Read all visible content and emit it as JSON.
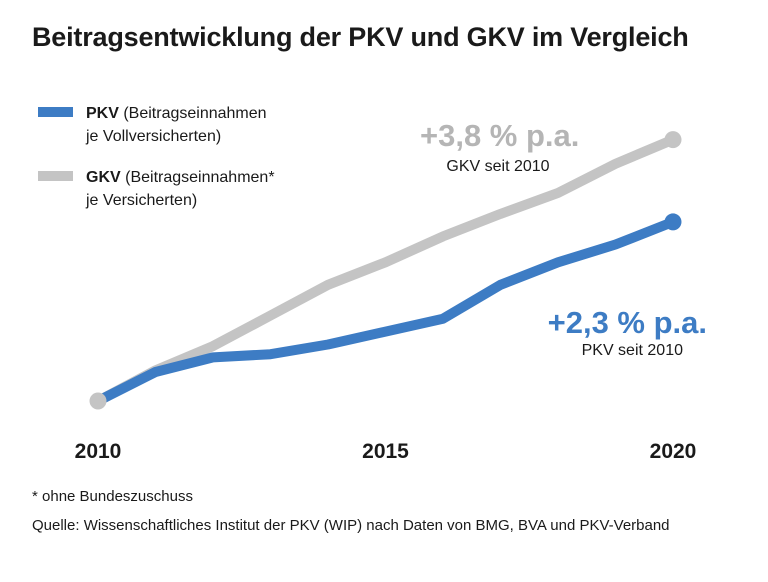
{
  "title": "Beitragsentwicklung der PKV und GKV im Vergleich",
  "chart_data": {
    "type": "line",
    "title": "Beitragsentwicklung der PKV und GKV im Vergleich",
    "xlabel": "",
    "ylabel": "",
    "x_ticks": [
      "2010",
      "2015",
      "2020"
    ],
    "xlim": [
      2010,
      2020
    ],
    "ylim": [
      0,
      15
    ],
    "grid": false,
    "legend_position": "top-left",
    "series": [
      {
        "id": "gkv",
        "name_bold": "GKV",
        "name_rest": "(Beitragseinnahmen*",
        "name_line2": "je Versicherten)",
        "color": "#c4c4c4",
        "x": [
          2010,
          2011,
          2012,
          2013,
          2014,
          2015,
          2016,
          2017,
          2018,
          2019,
          2020
        ],
        "y": [
          0,
          1.9,
          3.4,
          5.3,
          7.2,
          8.6,
          10.2,
          11.6,
          12.9,
          14.7,
          16.2
        ],
        "annotation": {
          "value": "+3,8 % p.a.",
          "sub": "GKV seit 2010"
        }
      },
      {
        "id": "pkv",
        "name_bold": "PKV",
        "name_rest": "(Beitragseinnahmen",
        "name_line2": "je Vollversicherten)",
        "color": "#3d7cc4",
        "x": [
          2010,
          2011,
          2012,
          2013,
          2014,
          2015,
          2016,
          2017,
          2018,
          2019,
          2020
        ],
        "y": [
          0,
          1.8,
          2.7,
          2.9,
          3.5,
          4.3,
          5.1,
          7.2,
          8.6,
          9.7,
          11.1
        ],
        "annotation": {
          "value": "+2,3 % p.a.",
          "sub": "PKV seit 2010"
        }
      }
    ]
  },
  "footnotes": {
    "asterisk": "* ohne Bundeszuschuss",
    "source": "Quelle: Wissenschaftliches Institut der PKV (WIP) nach Daten von BMG, BVA und PKV-Verband"
  }
}
